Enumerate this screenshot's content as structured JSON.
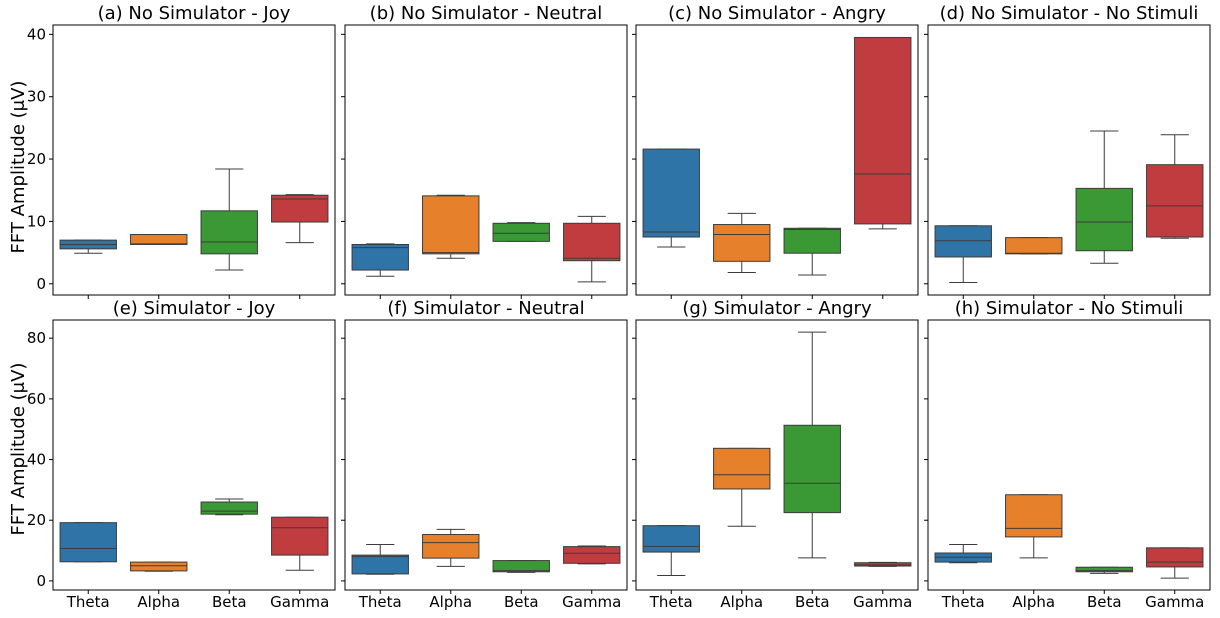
{
  "ylabel": "FFT Amplitude (μV)",
  "colors": {
    "Theta": "#2e74a6",
    "Alpha": "#e6802b",
    "Beta": "#3a9934",
    "Gamma": "#c13c3e"
  },
  "chart_data": {
    "type": "box",
    "categories": [
      "Theta",
      "Alpha",
      "Beta",
      "Gamma"
    ],
    "grid": false,
    "rows": [
      {
        "ylim": [
          -1.8,
          41.5
        ],
        "yticks": [
          "0",
          "10",
          "20",
          "30",
          "40"
        ]
      },
      {
        "ylim": [
          -3,
          86
        ],
        "yticks": [
          "0",
          "20",
          "40",
          "60",
          "80"
        ]
      }
    ],
    "panels": [
      {
        "title": "(a) No Simulator - Joy",
        "row": 0,
        "boxes": [
          {
            "whislo": 4.9,
            "q1": 5.6,
            "med": 6.3,
            "q3": 7.0,
            "whishi": 7.0
          },
          {
            "whislo": 6.3,
            "q1": 6.3,
            "med": 6.4,
            "q3": 7.9,
            "whishi": 7.9
          },
          {
            "whislo": 2.2,
            "q1": 4.8,
            "med": 6.7,
            "q3": 11.7,
            "whishi": 18.4
          },
          {
            "whislo": 6.6,
            "q1": 9.9,
            "med": 13.6,
            "q3": 14.2,
            "whishi": 14.3
          }
        ]
      },
      {
        "title": "(b) No Simulator - Neutral",
        "row": 0,
        "boxes": [
          {
            "whislo": 1.2,
            "q1": 2.2,
            "med": 5.8,
            "q3": 6.3,
            "whishi": 6.4
          },
          {
            "whislo": 4.1,
            "q1": 4.8,
            "med": 5.0,
            "q3": 14.1,
            "whishi": 14.2
          },
          {
            "whislo": 6.8,
            "q1": 6.8,
            "med": 8.1,
            "q3": 9.7,
            "whishi": 9.8
          },
          {
            "whislo": 0.3,
            "q1": 3.7,
            "med": 4.1,
            "q3": 9.7,
            "whishi": 10.8
          }
        ]
      },
      {
        "title": "(c) No Simulator - Angry",
        "row": 0,
        "boxes": [
          {
            "whislo": 5.9,
            "q1": 7.5,
            "med": 8.3,
            "q3": 21.6,
            "whishi": 21.6
          },
          {
            "whislo": 1.8,
            "q1": 3.6,
            "med": 7.9,
            "q3": 9.5,
            "whishi": 11.3
          },
          {
            "whislo": 1.4,
            "q1": 4.9,
            "med": 8.7,
            "q3": 8.9,
            "whishi": 8.9
          },
          {
            "whislo": 8.8,
            "q1": 9.6,
            "med": 17.6,
            "q3": 39.5,
            "whishi": 39.5
          }
        ]
      },
      {
        "title": "(d) No Simulator - No Stimuli",
        "row": 0,
        "boxes": [
          {
            "whislo": 0.2,
            "q1": 4.3,
            "med": 6.9,
            "q3": 9.3,
            "whishi": 9.3
          },
          {
            "whislo": 4.8,
            "q1": 4.8,
            "med": 4.9,
            "q3": 7.4,
            "whishi": 7.4
          },
          {
            "whislo": 3.3,
            "q1": 5.3,
            "med": 9.9,
            "q3": 15.3,
            "whishi": 24.5
          },
          {
            "whislo": 7.3,
            "q1": 7.5,
            "med": 12.5,
            "q3": 19.1,
            "whishi": 23.9
          }
        ]
      },
      {
        "title": "(e) Simulator - Joy",
        "row": 1,
        "boxes": [
          {
            "whislo": 6.3,
            "q1": 6.3,
            "med": 10.7,
            "q3": 19.2,
            "whishi": 19.2
          },
          {
            "whislo": 3.2,
            "q1": 3.3,
            "med": 5.0,
            "q3": 6.2,
            "whishi": 6.2
          },
          {
            "whislo": 21.8,
            "q1": 22.0,
            "med": 23.0,
            "q3": 26.0,
            "whishi": 27.0
          },
          {
            "whislo": 3.5,
            "q1": 8.5,
            "med": 17.5,
            "q3": 21.0,
            "whishi": 21.0
          }
        ]
      },
      {
        "title": "(f) Simulator - Neutral",
        "row": 1,
        "boxes": [
          {
            "whislo": 2.2,
            "q1": 2.3,
            "med": 8.0,
            "q3": 8.5,
            "whishi": 12.0
          },
          {
            "whislo": 4.8,
            "q1": 7.5,
            "med": 12.6,
            "q3": 15.3,
            "whishi": 17.0
          },
          {
            "whislo": 2.8,
            "q1": 3.0,
            "med": 3.4,
            "q3": 6.7,
            "whishi": 6.7
          },
          {
            "whislo": 5.6,
            "q1": 5.8,
            "med": 9.1,
            "q3": 11.3,
            "whishi": 11.5
          }
        ]
      },
      {
        "title": "(g) Simulator - Angry",
        "row": 1,
        "boxes": [
          {
            "whislo": 1.8,
            "q1": 9.5,
            "med": 11.4,
            "q3": 18.2,
            "whishi": 18.2
          },
          {
            "whislo": 18.0,
            "q1": 30.3,
            "med": 35.0,
            "q3": 43.7,
            "whishi": 43.7
          },
          {
            "whislo": 7.6,
            "q1": 22.5,
            "med": 32.2,
            "q3": 51.3,
            "whishi": 82.0
          },
          {
            "whislo": 4.8,
            "q1": 4.9,
            "med": 5.3,
            "q3": 6.0,
            "whishi": 6.1
          }
        ]
      },
      {
        "title": "(h) Simulator - No Stimuli",
        "row": 1,
        "boxes": [
          {
            "whislo": 6.0,
            "q1": 6.2,
            "med": 7.8,
            "q3": 9.2,
            "whishi": 12.0
          },
          {
            "whislo": 7.6,
            "q1": 14.5,
            "med": 17.3,
            "q3": 28.4,
            "whishi": 28.4
          },
          {
            "whislo": 2.5,
            "q1": 3.0,
            "med": 3.4,
            "q3": 4.5,
            "whishi": 4.5
          },
          {
            "whislo": 0.9,
            "q1": 4.6,
            "med": 6.2,
            "q3": 10.9,
            "whishi": 10.9
          }
        ]
      }
    ]
  }
}
